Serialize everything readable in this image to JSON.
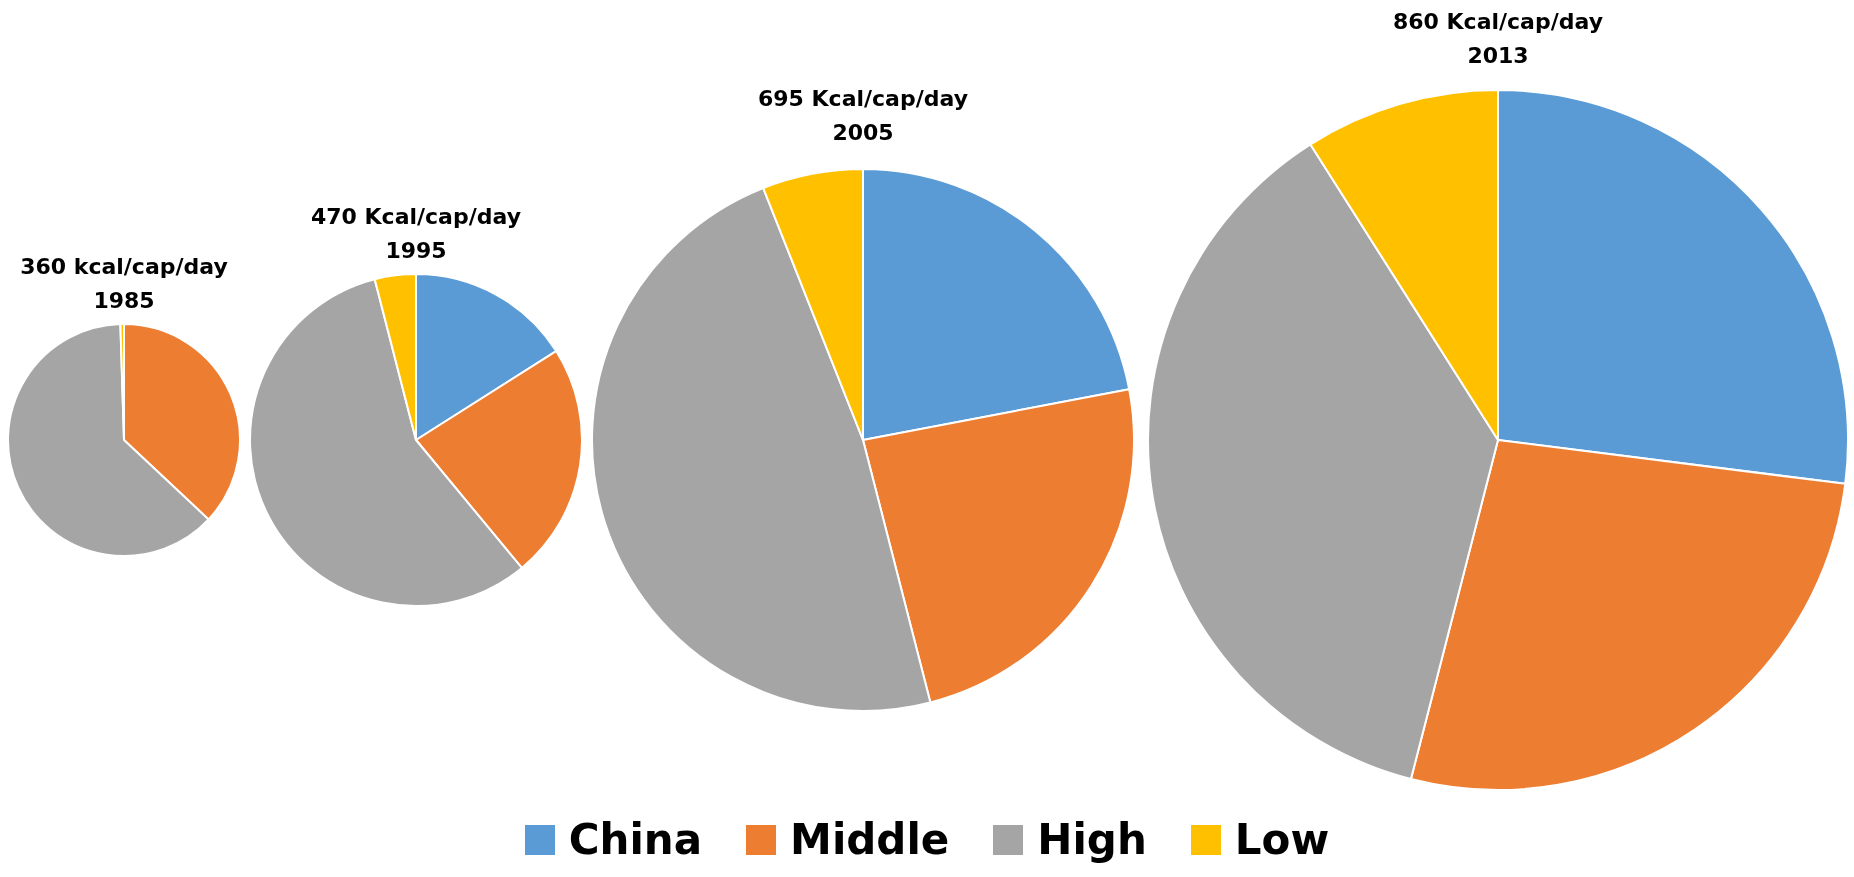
{
  "chart_data": {
    "type": "pie",
    "categories": [
      "China",
      "Middle",
      "High",
      "Low"
    ],
    "colors": [
      "#5b9bd5",
      "#ed7d31",
      "#a5a5a5",
      "#ffc000"
    ],
    "legend": "bottom",
    "series": [
      {
        "name": "360 kcal/cap/day 1985",
        "values": [
          0,
          37,
          62.5,
          0.5
        ]
      },
      {
        "name": "470 Kcal/cap/day 1995",
        "values": [
          16,
          23,
          57,
          4
        ]
      },
      {
        "name": "695 Kcal/cap/day 2005",
        "values": [
          22,
          24,
          48,
          6
        ]
      },
      {
        "name": "860 Kcal/cap/day 2013",
        "values": [
          27,
          27,
          37,
          9
        ]
      }
    ]
  }
}
